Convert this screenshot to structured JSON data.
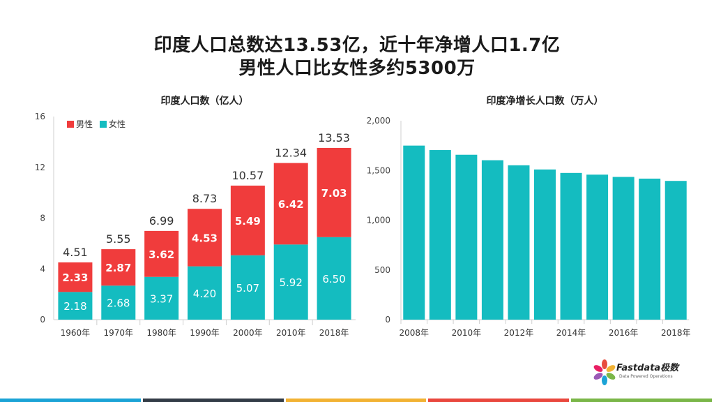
{
  "title_line1": "印度人口总数达13.53亿，近十年净增人口1.7亿",
  "title_line2": "男性人口比女性多约5300万",
  "colors": {
    "male": "#f03c3c",
    "female": "#14bcc0",
    "strip": [
      "#1ba3d6",
      "#333c47",
      "#f2b233",
      "#e9473d",
      "#7ab648"
    ]
  },
  "chart_data": [
    {
      "type": "bar",
      "stacked": true,
      "title": "印度人口数（亿人）",
      "categories": [
        "1960年",
        "1970年",
        "1980年",
        "1990年",
        "2000年",
        "2010年",
        "2018年"
      ],
      "series": [
        {
          "name": "女性",
          "values": [
            2.18,
            2.68,
            3.37,
            4.2,
            5.07,
            5.92,
            6.5
          ]
        },
        {
          "name": "男性",
          "values": [
            2.33,
            2.87,
            3.62,
            4.53,
            5.49,
            6.42,
            7.03
          ]
        }
      ],
      "totals": [
        4.51,
        5.55,
        6.99,
        8.73,
        10.57,
        12.34,
        13.53
      ],
      "female_labels": [
        "2.18",
        "2.68",
        "3.37",
        "4.20",
        "5.07",
        "5.92",
        "6.50"
      ],
      "male_labels": [
        "2.33",
        "2.87",
        "3.62",
        "4.53",
        "5.49",
        "6.42",
        "7.03"
      ],
      "total_labels": [
        "4.51",
        "5.55",
        "6.99",
        "8.73",
        "10.57",
        "12.34",
        "13.53"
      ],
      "ylim": [
        0,
        16
      ],
      "yticks": [
        "0",
        "4",
        "8",
        "12",
        "16"
      ],
      "legend": [
        "男性",
        "女性"
      ],
      "legend_position": "top-left"
    },
    {
      "type": "bar",
      "title": "印度净增长人口数（万人）",
      "categories": [
        "2008年",
        "2009年",
        "2010年",
        "2011年",
        "2012年",
        "2013年",
        "2014年",
        "2015年",
        "2016年",
        "2017年",
        "2018年"
      ],
      "xtick_labels": [
        "2008年",
        "",
        "2010年",
        "",
        "2012年",
        "",
        "2014年",
        "",
        "2016年",
        "",
        "2018年"
      ],
      "values": [
        1750,
        1705,
        1658,
        1603,
        1552,
        1510,
        1475,
        1458,
        1435,
        1418,
        1395
      ],
      "ylim": [
        0,
        2000
      ],
      "yticks": [
        "0",
        "500",
        "1,000",
        "1,500",
        "2,000"
      ]
    }
  ],
  "logo": {
    "name": "Fastdata极数",
    "tagline": "Data Powered Operations"
  }
}
